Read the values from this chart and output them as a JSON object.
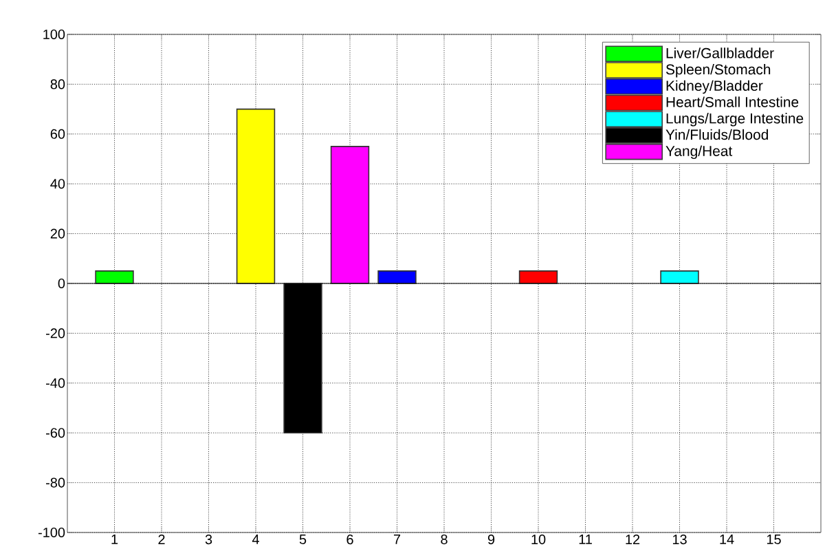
{
  "chart_data": {
    "type": "bar",
    "series": [
      {
        "name": "Liver/Gallbladder",
        "color": "#00ff00",
        "x": [
          1
        ],
        "values": [
          5
        ]
      },
      {
        "name": "Spleen/Stomach",
        "color": "#ffff00",
        "x": [
          4
        ],
        "values": [
          70
        ]
      },
      {
        "name": "Kidney/Bladder",
        "color": "#0000ff",
        "x": [
          7
        ],
        "values": [
          5
        ]
      },
      {
        "name": "Heart/Small Intestine",
        "color": "#ff0000",
        "x": [
          10
        ],
        "values": [
          5
        ]
      },
      {
        "name": "Lungs/Large Intestine",
        "color": "#00ffff",
        "x": [
          13
        ],
        "values": [
          5
        ]
      },
      {
        "name": "Yin/Fluids/Blood",
        "color": "#000000",
        "x": [
          5
        ],
        "values": [
          -60
        ]
      },
      {
        "name": "Yang/Heat",
        "color": "#ff00ff",
        "x": [
          6
        ],
        "values": [
          55
        ]
      }
    ],
    "xlim": [
      0,
      16
    ],
    "xticks": [
      1,
      2,
      3,
      4,
      5,
      6,
      7,
      8,
      9,
      10,
      11,
      12,
      13,
      14,
      15
    ],
    "ylim": [
      -100,
      100
    ],
    "yticks": [
      -100,
      -80,
      -60,
      -40,
      -20,
      0,
      20,
      40,
      60,
      80,
      100
    ],
    "ref_lines": [
      {
        "axis": "y",
        "value": 0,
        "color": "#000000"
      }
    ],
    "grid": true,
    "legend": "top right"
  }
}
